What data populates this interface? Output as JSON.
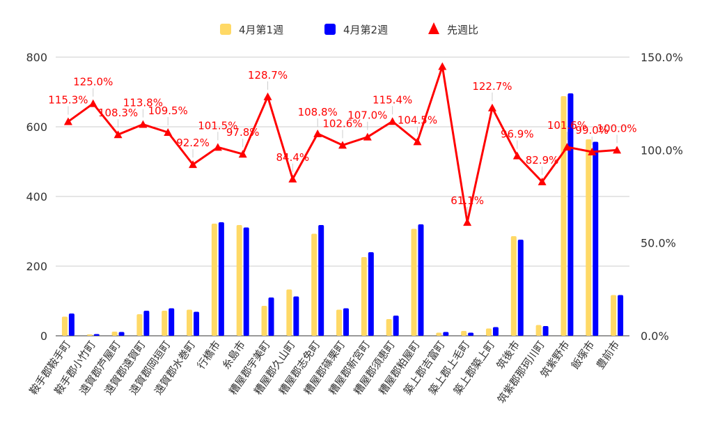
{
  "chart_data": {
    "type": "bar",
    "categories": [
      "鞍手郡鞍手町",
      "鞍手郡小竹町",
      "遠賀郡芦屋町",
      "遠賀郡遠賀町",
      "遠賀郡岡垣町",
      "遠賀郡水巻町",
      "行橋市",
      "糸島市",
      "糟屋郡宇美町",
      "糟屋郡久山町",
      "糟屋郡志免町",
      "糟屋郡篠栗町",
      "糟屋郡新宮町",
      "糟屋郡須恵町",
      "糟屋郡粕屋町",
      "築上郡吉富町",
      "築上郡上毛町",
      "築上郡築上町",
      "筑後市",
      "筑紫郡那珂川町",
      "筑紫野市",
      "飯塚市",
      "豊前市"
    ],
    "series": [
      {
        "name": "4月第1週",
        "type": "bar",
        "axis": "left",
        "color": "#FFD966",
        "values": [
          55,
          4,
          12,
          62,
          72,
          75,
          322,
          318,
          86,
          133,
          293,
          75,
          226,
          48,
          307,
          9,
          14,
          21,
          286,
          31,
          688,
          564,
          117
        ]
      },
      {
        "name": "4月第2週",
        "type": "bar",
        "axis": "left",
        "color": "#0000FF",
        "values": [
          64,
          5,
          11,
          72,
          79,
          69,
          326,
          311,
          110,
          113,
          318,
          79,
          240,
          58,
          320,
          11,
          9,
          25,
          276,
          28,
          696,
          557,
          117
        ]
      },
      {
        "name": "先週比",
        "type": "line",
        "axis": "right",
        "color": "#FF0000",
        "values": [
          115.3,
          125.0,
          108.3,
          113.8,
          109.5,
          92.2,
          101.5,
          97.8,
          128.7,
          84.4,
          108.8,
          102.6,
          107.0,
          115.4,
          104.5,
          145.0,
          61.1,
          122.7,
          96.9,
          82.9,
          101.6,
          99.0,
          100.0
        ],
        "labels": [
          "115.3%",
          "125.0%",
          "108.3%",
          "113.8%",
          "109.5%",
          "92.2%",
          "101.5%",
          "97.8%",
          "128.7%",
          "84.4%",
          "108.8%",
          "102.6%",
          "107.0%",
          "115.4%",
          "104.5%",
          "",
          "61.1%",
          "122.7%",
          "96.9%",
          "82.9%",
          "101.6%",
          "99.0%",
          "100.0%"
        ]
      }
    ],
    "y_left": {
      "min": 0,
      "max": 800,
      "ticks": [
        0,
        200,
        400,
        600,
        800
      ],
      "tick_labels": [
        "0",
        "200",
        "400",
        "600",
        "800"
      ]
    },
    "y_right": {
      "min": 0,
      "max": 150,
      "ticks": [
        0,
        50,
        100,
        150
      ],
      "tick_labels": [
        "0.0%",
        "50.0%",
        "100.0%",
        "150.0%"
      ]
    },
    "legend": {
      "placement": "top-center"
    },
    "grid": true
  }
}
